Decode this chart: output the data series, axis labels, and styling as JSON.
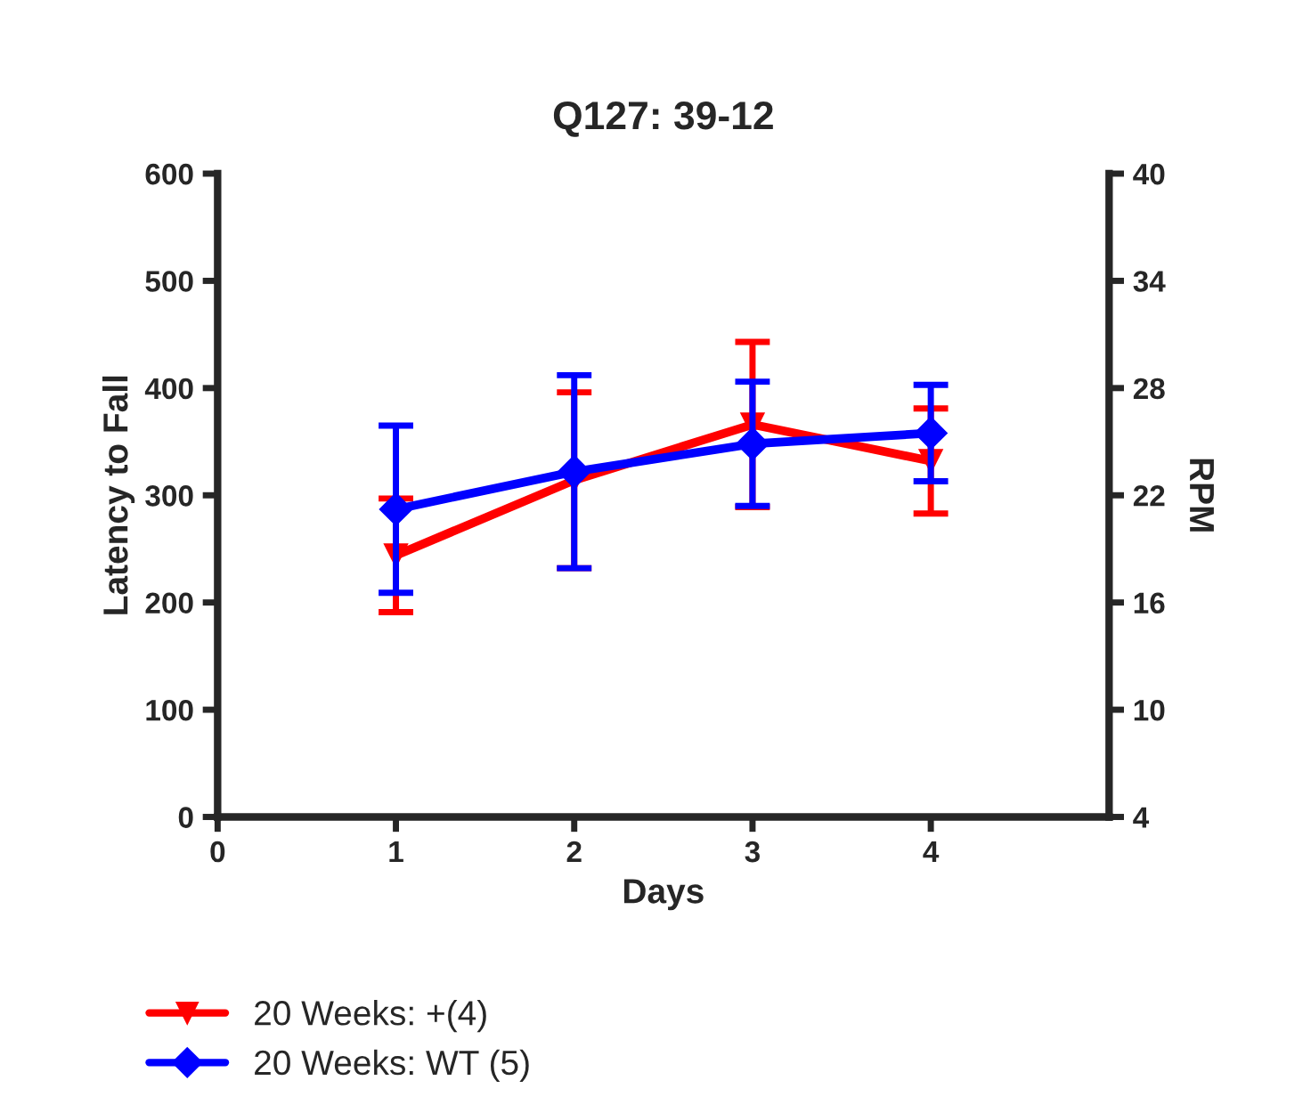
{
  "chart_data": {
    "type": "line",
    "title": "Q127: 39-12",
    "xlabel": "Days",
    "ylabel": "Latency to Fall",
    "y2label": "RPM",
    "x": [
      1,
      2,
      3,
      4
    ],
    "series": [
      {
        "name": "20 Weeks: +(4)",
        "color": "#ff0000",
        "marker": "triangle",
        "values": [
          244,
          314,
          366,
          332
        ],
        "errors": [
          53,
          82,
          77,
          49
        ]
      },
      {
        "name": "20 Weeks: WT (5)",
        "color": "#0000ff",
        "marker": "diamond",
        "values": [
          287,
          322,
          348,
          358
        ],
        "errors": [
          78,
          90,
          58,
          45
        ]
      }
    ],
    "xlim": [
      0,
      5
    ],
    "xticks": [
      0,
      1,
      2,
      3,
      4
    ],
    "ylim": [
      0,
      600
    ],
    "yticks": [
      0,
      100,
      200,
      300,
      400,
      500,
      600
    ],
    "y2lim": [
      4,
      40
    ],
    "y2ticks": [
      4,
      10,
      16,
      22,
      28,
      34,
      40
    ],
    "grid": false,
    "legend": "bottom left",
    "line_style": "solid"
  }
}
